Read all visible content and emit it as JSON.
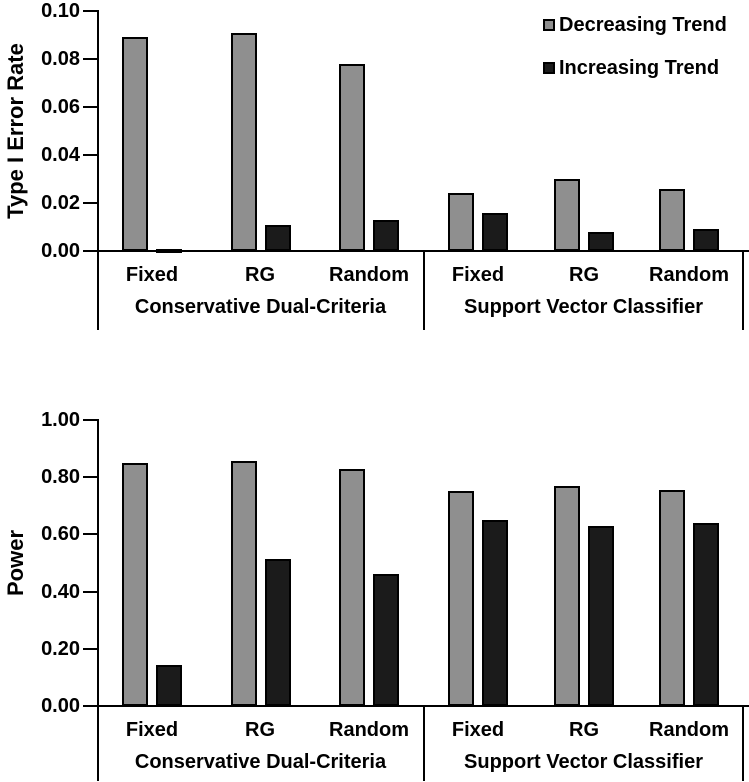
{
  "legend": {
    "position": "top-right",
    "items": [
      {
        "label": "Decreasing Trend",
        "color": "#8f8f8f"
      },
      {
        "label": "Increasing Trend",
        "color": "#1b1b1b"
      }
    ]
  },
  "chart_data": [
    {
      "type": "bar",
      "panel": "top",
      "ylabel": "Type I Error Rate",
      "xlabel": "",
      "ylim": [
        0,
        0.1
      ],
      "grid": false,
      "legend_position": "top-right",
      "ytick_values": [
        0.1,
        0.08,
        0.06,
        0.04,
        0.02,
        0.0
      ],
      "ytick_labels": [
        "0.10",
        "0.08",
        "0.06",
        "0.04",
        "0.02",
        "0.00"
      ],
      "groups": [
        {
          "label": "Conservative Dual-Criteria",
          "categories": [
            "Fixed",
            "RG",
            "Random"
          ]
        },
        {
          "label": "Support Vector Classifier",
          "categories": [
            "Fixed",
            "RG",
            "Random"
          ]
        }
      ],
      "series": [
        {
          "name": "Decreasing Trend",
          "color": "#8f8f8f",
          "values": [
            0.089,
            0.091,
            0.078,
            0.024,
            0.03,
            0.026
          ]
        },
        {
          "name": "Increasing Trend",
          "color": "#1b1b1b",
          "values": [
            0.0005,
            0.011,
            0.013,
            0.016,
            0.008,
            0.009
          ]
        }
      ]
    },
    {
      "type": "bar",
      "panel": "bottom",
      "ylabel": "Power",
      "xlabel": "",
      "ylim": [
        0,
        1.0
      ],
      "grid": false,
      "legend_position": "none",
      "ytick_values": [
        1.0,
        0.8,
        0.6,
        0.4,
        0.2,
        0.0
      ],
      "ytick_labels": [
        "1.00",
        "0.80",
        "0.60",
        "0.40",
        "0.20",
        "0.00"
      ],
      "groups": [
        {
          "label": "Conservative Dual-Criteria",
          "categories": [
            "Fixed",
            "RG",
            "Random"
          ]
        },
        {
          "label": "Support Vector Classifier",
          "categories": [
            "Fixed",
            "RG",
            "Random"
          ]
        }
      ],
      "series": [
        {
          "name": "Decreasing Trend",
          "color": "#8f8f8f",
          "values": [
            0.85,
            0.855,
            0.83,
            0.75,
            0.77,
            0.755
          ]
        },
        {
          "name": "Increasing Trend",
          "color": "#1b1b1b",
          "values": [
            0.145,
            0.515,
            0.46,
            0.65,
            0.63,
            0.64
          ]
        }
      ]
    }
  ]
}
